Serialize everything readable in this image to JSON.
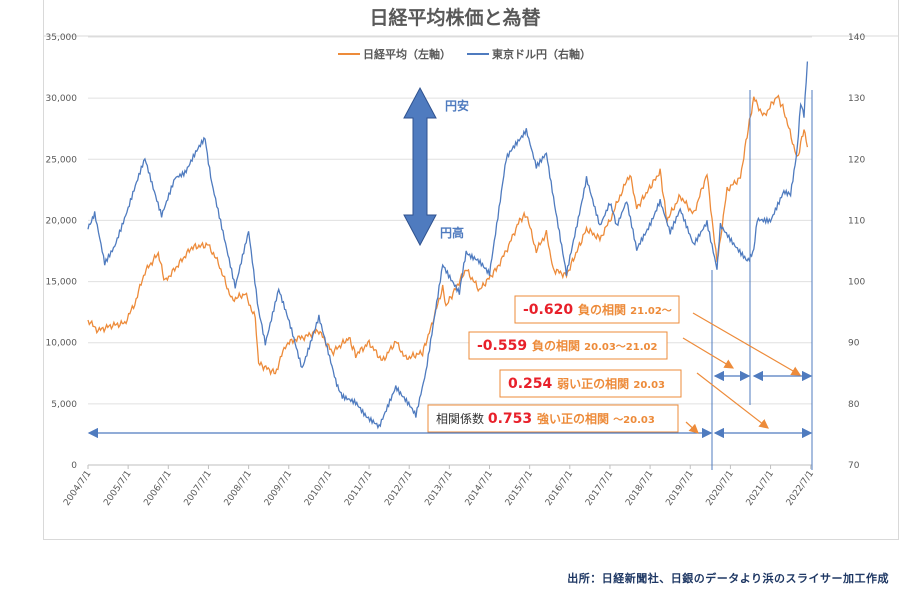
{
  "chart_data": {
    "type": "line",
    "title": "日経平均株価と為替",
    "legend_position": "top",
    "grid": true,
    "x_ticks": [
      "2004/7/1",
      "2005/7/1",
      "2006/7/1",
      "2007/7/1",
      "2008/7/1",
      "2009/7/1",
      "2010/7/1",
      "2011/7/1",
      "2012/7/1",
      "2013/7/1",
      "2014/7/1",
      "2015/7/1",
      "2016/7/1",
      "2017/7/1",
      "2018/7/1",
      "2019/7/1",
      "2020/7/1",
      "2021/7/1",
      "2022/7/1"
    ],
    "y_left": {
      "range": [
        0,
        35000
      ],
      "ticks": [
        "0",
        "5,000",
        "10,000",
        "15,000",
        "20,000",
        "25,000",
        "30,000",
        "35,000"
      ]
    },
    "y_right": {
      "range": [
        70,
        140
      ],
      "ticks": [
        "70",
        "80",
        "90",
        "100",
        "110",
        "120",
        "130",
        "140"
      ]
    },
    "series": [
      {
        "name": "日経平均（左軸）",
        "axis": "left",
        "color": "#ed8b3a",
        "points": [
          [
            "2004-07",
            11800
          ],
          [
            "2004-10",
            11000
          ],
          [
            "2005-02",
            11400
          ],
          [
            "2005-06",
            11600
          ],
          [
            "2005-09",
            13200
          ],
          [
            "2005-12",
            15800
          ],
          [
            "2006-04",
            17300
          ],
          [
            "2006-06",
            15000
          ],
          [
            "2006-10",
            16400
          ],
          [
            "2007-02",
            17800
          ],
          [
            "2007-07",
            18000
          ],
          [
            "2007-10",
            16500
          ],
          [
            "2008-02",
            13500
          ],
          [
            "2008-06",
            14000
          ],
          [
            "2008-09",
            12000
          ],
          [
            "2008-10",
            8300
          ],
          [
            "2009-03",
            7500
          ],
          [
            "2009-06",
            9800
          ],
          [
            "2009-09",
            10300
          ],
          [
            "2009-12",
            10500
          ],
          [
            "2010-04",
            11000
          ],
          [
            "2010-08",
            9200
          ],
          [
            "2011-01",
            10400
          ],
          [
            "2011-03",
            9000
          ],
          [
            "2011-07",
            10000
          ],
          [
            "2011-11",
            8500
          ],
          [
            "2012-03",
            10100
          ],
          [
            "2012-06",
            8700
          ],
          [
            "2012-11",
            9200
          ],
          [
            "2013-01",
            10800
          ],
          [
            "2013-05",
            14500
          ],
          [
            "2013-06",
            13000
          ],
          [
            "2013-12",
            16000
          ],
          [
            "2014-04",
            14300
          ],
          [
            "2014-09",
            16000
          ],
          [
            "2014-12",
            17500
          ],
          [
            "2015-04",
            20000
          ],
          [
            "2015-06",
            20500
          ],
          [
            "2015-09",
            17500
          ],
          [
            "2015-12",
            19000
          ],
          [
            "2016-02",
            16000
          ],
          [
            "2016-06",
            15500
          ],
          [
            "2016-12",
            19300
          ],
          [
            "2017-04",
            18500
          ],
          [
            "2017-07",
            20000
          ],
          [
            "2017-10",
            22000
          ],
          [
            "2018-01",
            23800
          ],
          [
            "2018-03",
            21000
          ],
          [
            "2018-10",
            24000
          ],
          [
            "2018-12",
            20000
          ],
          [
            "2019-04",
            22000
          ],
          [
            "2019-08",
            20500
          ],
          [
            "2019-12",
            23800
          ],
          [
            "2020-03",
            16500
          ],
          [
            "2020-06",
            22500
          ],
          [
            "2020-10",
            23500
          ],
          [
            "2020-12",
            27000
          ],
          [
            "2021-02",
            30000
          ],
          [
            "2021-05",
            28500
          ],
          [
            "2021-09",
            30200
          ],
          [
            "2021-11",
            29000
          ],
          [
            "2022-03",
            25000
          ],
          [
            "2022-05",
            27500
          ],
          [
            "2022-06",
            26000
          ]
        ]
      },
      {
        "name": "東京ドル円（右軸）",
        "axis": "right",
        "color": "#4f7bbf",
        "points": [
          [
            "2004-07",
            109
          ],
          [
            "2004-09",
            111
          ],
          [
            "2004-12",
            103
          ],
          [
            "2005-03",
            106
          ],
          [
            "2005-07",
            112
          ],
          [
            "2005-12",
            120
          ],
          [
            "2006-05",
            111
          ],
          [
            "2006-09",
            117
          ],
          [
            "2006-12",
            118
          ],
          [
            "2007-06",
            123.5
          ],
          [
            "2007-08",
            116
          ],
          [
            "2007-11",
            109
          ],
          [
            "2008-03",
            99
          ],
          [
            "2008-07",
            108
          ],
          [
            "2008-10",
            95
          ],
          [
            "2008-12",
            90
          ],
          [
            "2009-04",
            99
          ],
          [
            "2009-11",
            86
          ],
          [
            "2010-04",
            94
          ],
          [
            "2010-09",
            84
          ],
          [
            "2010-11",
            81
          ],
          [
            "2011-03",
            80
          ],
          [
            "2011-10",
            76
          ],
          [
            "2012-03",
            83
          ],
          [
            "2012-09",
            78
          ],
          [
            "2012-12",
            85
          ],
          [
            "2013-05",
            103
          ],
          [
            "2013-10",
            98
          ],
          [
            "2013-12",
            105
          ],
          [
            "2014-07",
            101.5
          ],
          [
            "2014-12",
            120
          ],
          [
            "2015-06",
            125
          ],
          [
            "2015-09",
            119
          ],
          [
            "2015-12",
            121
          ],
          [
            "2016-06",
            101
          ],
          [
            "2016-12",
            117
          ],
          [
            "2017-04",
            109
          ],
          [
            "2017-07",
            113
          ],
          [
            "2017-09",
            109
          ],
          [
            "2017-12",
            113
          ],
          [
            "2018-03",
            105
          ],
          [
            "2018-10",
            113
          ],
          [
            "2019-01",
            108
          ],
          [
            "2019-04",
            112
          ],
          [
            "2019-08",
            106
          ],
          [
            "2019-12",
            109.5
          ],
          [
            "2020-03",
            102
          ],
          [
            "2020-04",
            109
          ],
          [
            "2020-08",
            106
          ],
          [
            "2020-12",
            103.5
          ],
          [
            "2021-02",
            105
          ],
          [
            "2021-03",
            110
          ],
          [
            "2021-07",
            110
          ],
          [
            "2021-11",
            115
          ],
          [
            "2022-01",
            114
          ],
          [
            "2022-03",
            122
          ],
          [
            "2022-04",
            129
          ],
          [
            "2022-05",
            127
          ],
          [
            "2022-06",
            136
          ]
        ]
      }
    ],
    "annotations": {
      "yen_weak": "円安",
      "yen_strong": "円高",
      "box1": {
        "value": "-0.620",
        "label": "負の相関",
        "period": "21.02〜"
      },
      "box2": {
        "value": "-0.559",
        "label": "負の相関",
        "period": "20.03〜21.02"
      },
      "box3": {
        "value": "0.254",
        "label": "弱い正の相関",
        "period": "20.03"
      },
      "box4": {
        "prefix": "相関係数",
        "value": "0.753",
        "label": "強い正の相関",
        "period": "〜20.03"
      }
    },
    "colors": {
      "value_red": "#e8202a",
      "label_orange": "#ed8b3a",
      "arrow_blue": "#4f7bbf"
    }
  },
  "source": "出所：日経新聞社、日銀のデータより浜のスライサー加工作成"
}
